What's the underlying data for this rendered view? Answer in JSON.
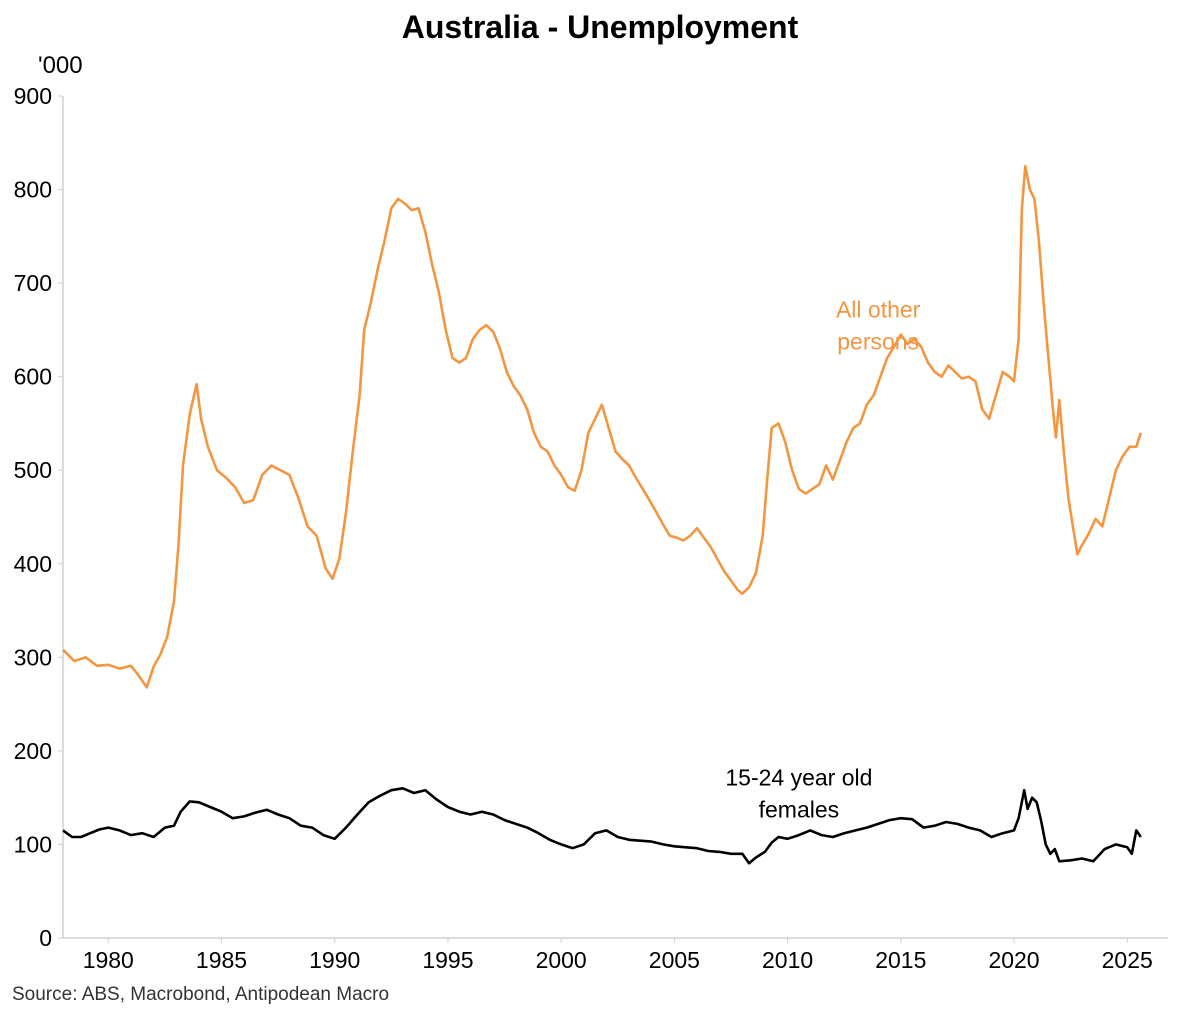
{
  "chart_data": {
    "type": "line",
    "title": "Australia - Unemployment",
    "unit_label": "'000",
    "ylim": [
      0,
      900
    ],
    "yticks": [
      0,
      100,
      200,
      300,
      400,
      500,
      600,
      700,
      800,
      900
    ],
    "xlim": [
      1978.0,
      2026.8
    ],
    "xticks": [
      1980,
      1985,
      1990,
      1995,
      2000,
      2005,
      2010,
      2015,
      2020,
      2025
    ],
    "grid": false,
    "legend": "none",
    "annotations": [
      {
        "lines": [
          "All other",
          "persons"
        ],
        "x": 2014.0,
        "y": 663,
        "color": "#f39642"
      },
      {
        "lines": [
          "15-24 year old",
          "females"
        ],
        "x": 2010.5,
        "y": 163,
        "color": "#000000"
      }
    ],
    "series": [
      {
        "color": "#f39642",
        "points": [
          [
            1978.0,
            308
          ],
          [
            1978.5,
            296
          ],
          [
            1979.0,
            300
          ],
          [
            1979.5,
            291
          ],
          [
            1980.0,
            292
          ],
          [
            1980.5,
            288
          ],
          [
            1981.0,
            291
          ],
          [
            1981.3,
            282
          ],
          [
            1981.7,
            268
          ],
          [
            1982.0,
            290
          ],
          [
            1982.3,
            303
          ],
          [
            1982.6,
            322
          ],
          [
            1982.9,
            360
          ],
          [
            1983.1,
            420
          ],
          [
            1983.3,
            505
          ],
          [
            1983.6,
            560
          ],
          [
            1983.9,
            592
          ],
          [
            1984.1,
            555
          ],
          [
            1984.4,
            525
          ],
          [
            1984.8,
            500
          ],
          [
            1985.2,
            492
          ],
          [
            1985.6,
            482
          ],
          [
            1986.0,
            465
          ],
          [
            1986.4,
            468
          ],
          [
            1986.8,
            495
          ],
          [
            1987.2,
            505
          ],
          [
            1987.6,
            500
          ],
          [
            1988.0,
            495
          ],
          [
            1988.4,
            470
          ],
          [
            1988.8,
            440
          ],
          [
            1989.2,
            430
          ],
          [
            1989.6,
            395
          ],
          [
            1989.9,
            384
          ],
          [
            1990.2,
            405
          ],
          [
            1990.5,
            455
          ],
          [
            1990.8,
            520
          ],
          [
            1991.1,
            580
          ],
          [
            1991.3,
            650
          ],
          [
            1991.6,
            680
          ],
          [
            1991.9,
            715
          ],
          [
            1992.2,
            745
          ],
          [
            1992.5,
            780
          ],
          [
            1992.8,
            790
          ],
          [
            1993.1,
            785
          ],
          [
            1993.4,
            778
          ],
          [
            1993.7,
            780
          ],
          [
            1994.0,
            755
          ],
          [
            1994.3,
            720
          ],
          [
            1994.6,
            690
          ],
          [
            1994.9,
            650
          ],
          [
            1995.2,
            620
          ],
          [
            1995.5,
            615
          ],
          [
            1995.8,
            620
          ],
          [
            1996.1,
            640
          ],
          [
            1996.4,
            650
          ],
          [
            1996.7,
            655
          ],
          [
            1997.0,
            648
          ],
          [
            1997.3,
            630
          ],
          [
            1997.6,
            605
          ],
          [
            1997.9,
            590
          ],
          [
            1998.2,
            580
          ],
          [
            1998.5,
            565
          ],
          [
            1998.8,
            540
          ],
          [
            1999.1,
            525
          ],
          [
            1999.4,
            520
          ],
          [
            1999.7,
            505
          ],
          [
            2000.0,
            495
          ],
          [
            2000.3,
            482
          ],
          [
            2000.6,
            478
          ],
          [
            2000.9,
            500
          ],
          [
            2001.2,
            540
          ],
          [
            2001.5,
            555
          ],
          [
            2001.8,
            570
          ],
          [
            2002.1,
            545
          ],
          [
            2002.4,
            520
          ],
          [
            2002.7,
            512
          ],
          [
            2003.0,
            505
          ],
          [
            2003.3,
            492
          ],
          [
            2003.6,
            480
          ],
          [
            2003.9,
            468
          ],
          [
            2004.2,
            455
          ],
          [
            2004.5,
            442
          ],
          [
            2004.8,
            430
          ],
          [
            2005.1,
            428
          ],
          [
            2005.4,
            425
          ],
          [
            2005.7,
            430
          ],
          [
            2006.0,
            438
          ],
          [
            2006.3,
            428
          ],
          [
            2006.6,
            418
          ],
          [
            2006.9,
            405
          ],
          [
            2007.2,
            392
          ],
          [
            2007.5,
            382
          ],
          [
            2007.8,
            372
          ],
          [
            2008.0,
            368
          ],
          [
            2008.3,
            375
          ],
          [
            2008.6,
            390
          ],
          [
            2008.9,
            430
          ],
          [
            2009.1,
            490
          ],
          [
            2009.3,
            545
          ],
          [
            2009.6,
            550
          ],
          [
            2009.9,
            530
          ],
          [
            2010.2,
            500
          ],
          [
            2010.5,
            480
          ],
          [
            2010.8,
            475
          ],
          [
            2011.1,
            480
          ],
          [
            2011.4,
            485
          ],
          [
            2011.7,
            505
          ],
          [
            2012.0,
            490
          ],
          [
            2012.3,
            510
          ],
          [
            2012.6,
            530
          ],
          [
            2012.9,
            545
          ],
          [
            2013.2,
            550
          ],
          [
            2013.5,
            570
          ],
          [
            2013.8,
            580
          ],
          [
            2014.1,
            600
          ],
          [
            2014.4,
            620
          ],
          [
            2014.7,
            632
          ],
          [
            2015.0,
            645
          ],
          [
            2015.3,
            635
          ],
          [
            2015.6,
            640
          ],
          [
            2015.9,
            632
          ],
          [
            2016.2,
            615
          ],
          [
            2016.5,
            605
          ],
          [
            2016.8,
            600
          ],
          [
            2017.1,
            612
          ],
          [
            2017.4,
            605
          ],
          [
            2017.7,
            598
          ],
          [
            2018.0,
            600
          ],
          [
            2018.3,
            595
          ],
          [
            2018.6,
            565
          ],
          [
            2018.9,
            555
          ],
          [
            2019.2,
            580
          ],
          [
            2019.5,
            605
          ],
          [
            2019.8,
            600
          ],
          [
            2020.0,
            595
          ],
          [
            2020.2,
            640
          ],
          [
            2020.35,
            780
          ],
          [
            2020.5,
            825
          ],
          [
            2020.7,
            800
          ],
          [
            2020.9,
            790
          ],
          [
            2021.1,
            745
          ],
          [
            2021.3,
            680
          ],
          [
            2021.5,
            625
          ],
          [
            2021.7,
            570
          ],
          [
            2021.85,
            535
          ],
          [
            2022.0,
            575
          ],
          [
            2022.2,
            520
          ],
          [
            2022.4,
            470
          ],
          [
            2022.6,
            440
          ],
          [
            2022.8,
            410
          ],
          [
            2023.0,
            420
          ],
          [
            2023.3,
            432
          ],
          [
            2023.6,
            448
          ],
          [
            2023.9,
            440
          ],
          [
            2024.2,
            470
          ],
          [
            2024.5,
            500
          ],
          [
            2024.8,
            515
          ],
          [
            2025.1,
            525
          ],
          [
            2025.4,
            525
          ],
          [
            2025.6,
            540
          ]
        ]
      },
      {
        "color": "#000000",
        "points": [
          [
            1978.0,
            115
          ],
          [
            1978.4,
            108
          ],
          [
            1978.8,
            108
          ],
          [
            1979.2,
            112
          ],
          [
            1979.6,
            116
          ],
          [
            1980.0,
            118
          ],
          [
            1980.5,
            115
          ],
          [
            1981.0,
            110
          ],
          [
            1981.5,
            112
          ],
          [
            1982.0,
            108
          ],
          [
            1982.5,
            118
          ],
          [
            1982.9,
            120
          ],
          [
            1983.2,
            135
          ],
          [
            1983.6,
            146
          ],
          [
            1984.0,
            145
          ],
          [
            1984.5,
            140
          ],
          [
            1985.0,
            135
          ],
          [
            1985.5,
            128
          ],
          [
            1986.0,
            130
          ],
          [
            1986.5,
            134
          ],
          [
            1987.0,
            137
          ],
          [
            1987.5,
            132
          ],
          [
            1988.0,
            128
          ],
          [
            1988.5,
            120
          ],
          [
            1989.0,
            118
          ],
          [
            1989.5,
            110
          ],
          [
            1990.0,
            106
          ],
          [
            1990.5,
            118
          ],
          [
            1991.0,
            132
          ],
          [
            1991.5,
            145
          ],
          [
            1992.0,
            152
          ],
          [
            1992.5,
            158
          ],
          [
            1993.0,
            160
          ],
          [
            1993.5,
            155
          ],
          [
            1994.0,
            158
          ],
          [
            1994.5,
            148
          ],
          [
            1995.0,
            140
          ],
          [
            1995.5,
            135
          ],
          [
            1996.0,
            132
          ],
          [
            1996.5,
            135
          ],
          [
            1997.0,
            132
          ],
          [
            1997.5,
            126
          ],
          [
            1998.0,
            122
          ],
          [
            1998.5,
            118
          ],
          [
            1999.0,
            112
          ],
          [
            1999.5,
            105
          ],
          [
            2000.0,
            100
          ],
          [
            2000.5,
            96
          ],
          [
            2001.0,
            100
          ],
          [
            2001.5,
            112
          ],
          [
            2002.0,
            115
          ],
          [
            2002.5,
            108
          ],
          [
            2003.0,
            105
          ],
          [
            2003.5,
            104
          ],
          [
            2004.0,
            103
          ],
          [
            2004.5,
            100
          ],
          [
            2005.0,
            98
          ],
          [
            2005.5,
            97
          ],
          [
            2006.0,
            96
          ],
          [
            2006.5,
            93
          ],
          [
            2007.0,
            92
          ],
          [
            2007.5,
            90
          ],
          [
            2008.0,
            90
          ],
          [
            2008.3,
            80
          ],
          [
            2008.6,
            86
          ],
          [
            2009.0,
            92
          ],
          [
            2009.3,
            102
          ],
          [
            2009.6,
            108
          ],
          [
            2010.0,
            106
          ],
          [
            2010.5,
            110
          ],
          [
            2011.0,
            115
          ],
          [
            2011.5,
            110
          ],
          [
            2012.0,
            108
          ],
          [
            2012.5,
            112
          ],
          [
            2013.0,
            115
          ],
          [
            2013.5,
            118
          ],
          [
            2014.0,
            122
          ],
          [
            2014.5,
            126
          ],
          [
            2015.0,
            128
          ],
          [
            2015.5,
            127
          ],
          [
            2016.0,
            118
          ],
          [
            2016.5,
            120
          ],
          [
            2017.0,
            124
          ],
          [
            2017.5,
            122
          ],
          [
            2018.0,
            118
          ],
          [
            2018.5,
            115
          ],
          [
            2019.0,
            108
          ],
          [
            2019.5,
            112
          ],
          [
            2020.0,
            115
          ],
          [
            2020.2,
            128
          ],
          [
            2020.45,
            158
          ],
          [
            2020.6,
            138
          ],
          [
            2020.8,
            150
          ],
          [
            2021.0,
            145
          ],
          [
            2021.2,
            125
          ],
          [
            2021.4,
            100
          ],
          [
            2021.6,
            90
          ],
          [
            2021.8,
            95
          ],
          [
            2022.0,
            82
          ],
          [
            2022.5,
            83
          ],
          [
            2023.0,
            85
          ],
          [
            2023.5,
            82
          ],
          [
            2024.0,
            95
          ],
          [
            2024.5,
            100
          ],
          [
            2025.0,
            97
          ],
          [
            2025.2,
            90
          ],
          [
            2025.4,
            115
          ],
          [
            2025.6,
            108
          ]
        ]
      }
    ]
  },
  "source_text": "Source: ABS, Macrobond, Antipodean Macro"
}
